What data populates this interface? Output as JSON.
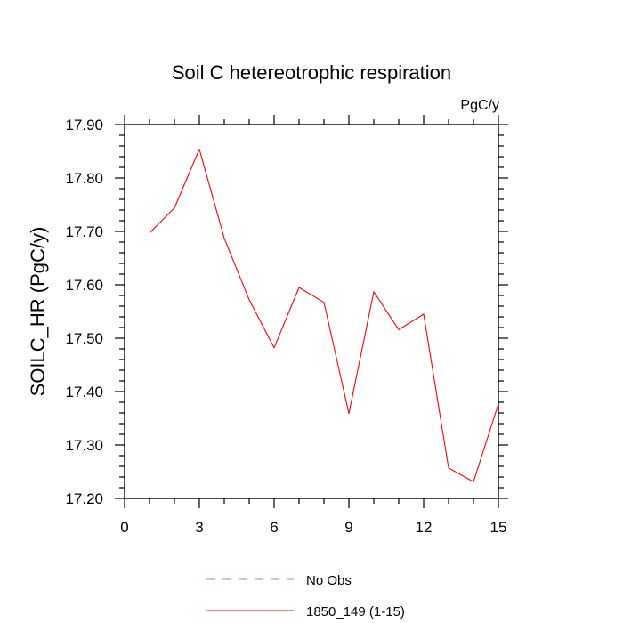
{
  "chart_data": {
    "type": "line",
    "title": "Soil C hetereotrophic respiration",
    "units": "PgC/y",
    "xlabel": "",
    "ylabel": "SOILC_HR  (PgC/y)",
    "xlim": [
      0,
      15
    ],
    "ylim": [
      17.2,
      17.9
    ],
    "xticks": [
      0,
      3,
      6,
      9,
      12,
      15
    ],
    "yticks": [
      17.2,
      17.3,
      17.4,
      17.5,
      17.6,
      17.7,
      17.8,
      17.9
    ],
    "ytick_labels": [
      "17.20",
      "17.30",
      "17.40",
      "17.50",
      "17.60",
      "17.70",
      "17.80",
      "17.90"
    ],
    "grid": false,
    "legend_position": "bottom",
    "series": [
      {
        "name": "No Obs",
        "color": "#8a8aee",
        "dash": "dashed",
        "x": [],
        "y": []
      },
      {
        "name": "1850_149 (1-15)",
        "color": "#ff0000",
        "dash": "solid",
        "x": [
          1,
          2,
          3,
          4,
          5,
          6,
          7,
          8,
          9,
          10,
          11,
          12,
          13,
          14,
          15
        ],
        "y": [
          17.697,
          17.744,
          17.854,
          17.687,
          17.572,
          17.482,
          17.595,
          17.567,
          17.359,
          17.587,
          17.516,
          17.545,
          17.257,
          17.231,
          17.377
        ]
      }
    ]
  }
}
